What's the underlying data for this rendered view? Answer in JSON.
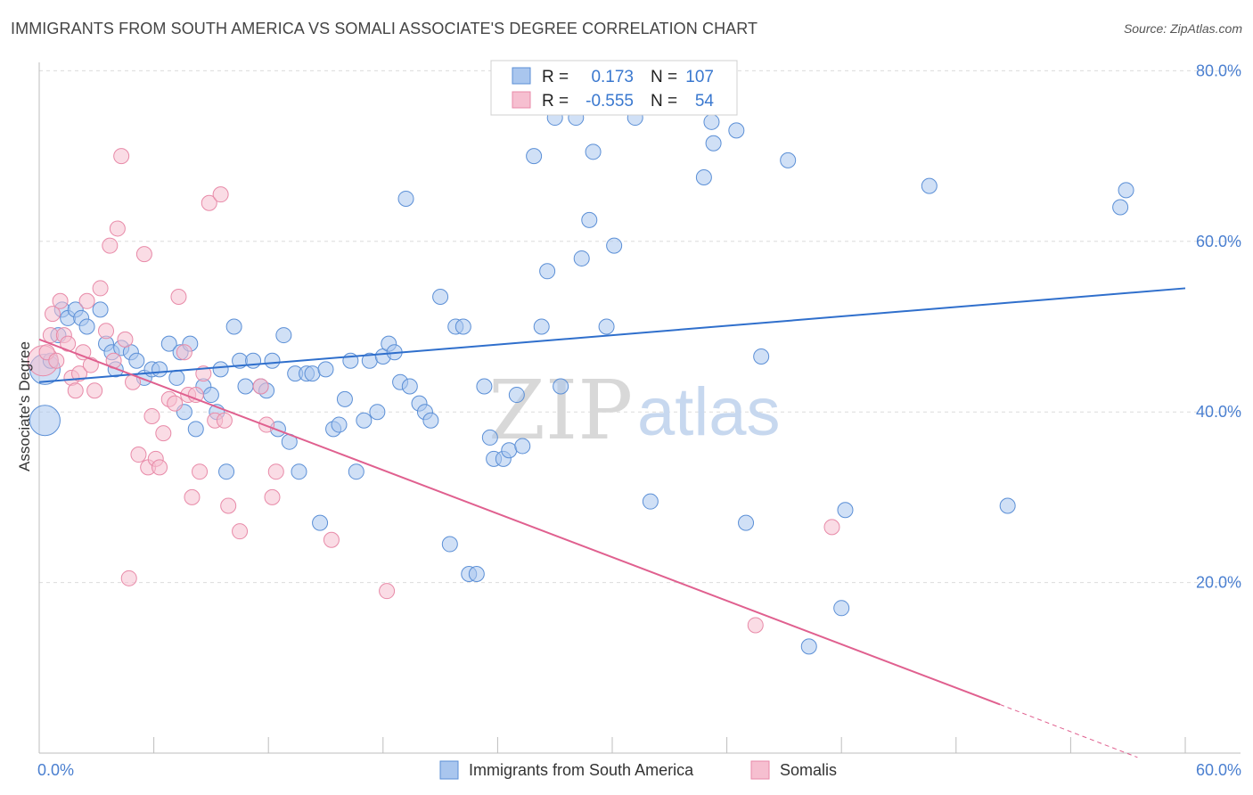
{
  "header": {
    "title": "IMMIGRANTS FROM SOUTH AMERICA VS SOMALI ASSOCIATE'S DEGREE CORRELATION CHART",
    "source": "Source: ZipAtlas.com"
  },
  "watermark": {
    "zip": "ZIP",
    "atlas": "atlas"
  },
  "colors": {
    "blue_fill": "#a9c6ee",
    "blue_stroke": "#5b8fd6",
    "blue_line": "#2f6fcc",
    "pink_fill": "#f6bfd0",
    "pink_stroke": "#e88aa8",
    "pink_line": "#e0608f",
    "grid": "#dcdcdc",
    "axis_text": "#4a7fd0"
  },
  "legend_box": {
    "rows": [
      {
        "r_label": "R =",
        "r_value": "0.173",
        "n_label": "N =",
        "n_value": "107"
      },
      {
        "r_label": "R =",
        "r_value": "-0.555",
        "n_label": "N =",
        "n_value": "54"
      }
    ]
  },
  "chart_data": {
    "type": "scatter",
    "title": "IMMIGRANTS FROM SOUTH AMERICA VS SOMALI ASSOCIATE'S DEGREE CORRELATION CHART",
    "xlabel": "",
    "ylabel": "Associate's Degree",
    "xlim": [
      0,
      60
    ],
    "ylim": [
      0,
      82
    ],
    "x_tick_labels": [
      "0.0%",
      "60.0%"
    ],
    "y_ticks": [
      20,
      40,
      60,
      80
    ],
    "y_tick_labels": [
      "20.0%",
      "40.0%",
      "60.0%",
      "80.0%"
    ],
    "grid": true,
    "series": [
      {
        "name": "Immigrants from South America",
        "color": "#a9c6ee",
        "trend": {
          "x": [
            0,
            60
          ],
          "y": [
            43.5,
            54.5
          ]
        },
        "points": [
          {
            "x": 0.3,
            "y": 39,
            "big": true
          },
          {
            "x": 0.3,
            "y": 45,
            "big": true
          },
          {
            "x": 0.6,
            "y": 46
          },
          {
            "x": 1.0,
            "y": 49
          },
          {
            "x": 1.2,
            "y": 52
          },
          {
            "x": 1.5,
            "y": 51
          },
          {
            "x": 1.9,
            "y": 52
          },
          {
            "x": 2.2,
            "y": 51
          },
          {
            "x": 2.5,
            "y": 50
          },
          {
            "x": 3.2,
            "y": 52
          },
          {
            "x": 3.5,
            "y": 48
          },
          {
            "x": 3.8,
            "y": 47
          },
          {
            "x": 4.0,
            "y": 45
          },
          {
            "x": 4.3,
            "y": 47.5
          },
          {
            "x": 4.8,
            "y": 47
          },
          {
            "x": 5.1,
            "y": 46
          },
          {
            "x": 5.5,
            "y": 44
          },
          {
            "x": 5.9,
            "y": 45
          },
          {
            "x": 6.3,
            "y": 45
          },
          {
            "x": 6.8,
            "y": 48
          },
          {
            "x": 7.2,
            "y": 44
          },
          {
            "x": 7.4,
            "y": 47
          },
          {
            "x": 7.6,
            "y": 40
          },
          {
            "x": 7.9,
            "y": 48
          },
          {
            "x": 8.2,
            "y": 38
          },
          {
            "x": 8.6,
            "y": 43
          },
          {
            "x": 9.0,
            "y": 42
          },
          {
            "x": 9.3,
            "y": 40
          },
          {
            "x": 9.5,
            "y": 45
          },
          {
            "x": 9.8,
            "y": 33
          },
          {
            "x": 10.2,
            "y": 50
          },
          {
            "x": 10.5,
            "y": 46
          },
          {
            "x": 10.8,
            "y": 43
          },
          {
            "x": 11.2,
            "y": 46
          },
          {
            "x": 11.6,
            "y": 43
          },
          {
            "x": 11.9,
            "y": 42.5
          },
          {
            "x": 12.2,
            "y": 46
          },
          {
            "x": 12.5,
            "y": 38
          },
          {
            "x": 12.8,
            "y": 49
          },
          {
            "x": 13.1,
            "y": 36.5
          },
          {
            "x": 13.4,
            "y": 44.5
          },
          {
            "x": 13.6,
            "y": 33
          },
          {
            "x": 14.0,
            "y": 44.5
          },
          {
            "x": 14.3,
            "y": 44.5
          },
          {
            "x": 14.7,
            "y": 27
          },
          {
            "x": 15.0,
            "y": 45
          },
          {
            "x": 15.4,
            "y": 38
          },
          {
            "x": 15.7,
            "y": 38.5
          },
          {
            "x": 16.0,
            "y": 41.5
          },
          {
            "x": 16.3,
            "y": 46
          },
          {
            "x": 16.6,
            "y": 33
          },
          {
            "x": 17.0,
            "y": 39
          },
          {
            "x": 17.3,
            "y": 46
          },
          {
            "x": 17.7,
            "y": 40
          },
          {
            "x": 18.0,
            "y": 46.5
          },
          {
            "x": 18.3,
            "y": 48
          },
          {
            "x": 18.6,
            "y": 47
          },
          {
            "x": 18.9,
            "y": 43.5
          },
          {
            "x": 19.2,
            "y": 65
          },
          {
            "x": 19.4,
            "y": 43
          },
          {
            "x": 19.9,
            "y": 41
          },
          {
            "x": 20.2,
            "y": 40
          },
          {
            "x": 20.5,
            "y": 39
          },
          {
            "x": 21.0,
            "y": 53.5
          },
          {
            "x": 21.5,
            "y": 24.5
          },
          {
            "x": 21.8,
            "y": 50
          },
          {
            "x": 22.2,
            "y": 50
          },
          {
            "x": 22.5,
            "y": 21
          },
          {
            "x": 22.9,
            "y": 21
          },
          {
            "x": 23.3,
            "y": 43
          },
          {
            "x": 23.6,
            "y": 37
          },
          {
            "x": 23.8,
            "y": 34.5
          },
          {
            "x": 24.3,
            "y": 34.5
          },
          {
            "x": 24.6,
            "y": 35.5
          },
          {
            "x": 25.0,
            "y": 42
          },
          {
            "x": 25.3,
            "y": 36
          },
          {
            "x": 25.9,
            "y": 70
          },
          {
            "x": 26.3,
            "y": 50
          },
          {
            "x": 26.6,
            "y": 56.5
          },
          {
            "x": 27.0,
            "y": 74.5
          },
          {
            "x": 27.3,
            "y": 43
          },
          {
            "x": 28.1,
            "y": 74.5
          },
          {
            "x": 28.4,
            "y": 58
          },
          {
            "x": 28.8,
            "y": 62.5
          },
          {
            "x": 29.0,
            "y": 70.5
          },
          {
            "x": 29.7,
            "y": 50
          },
          {
            "x": 30.1,
            "y": 59.5
          },
          {
            "x": 31.2,
            "y": 74.5
          },
          {
            "x": 32.0,
            "y": 29.5
          },
          {
            "x": 34.8,
            "y": 67.5
          },
          {
            "x": 35.2,
            "y": 74
          },
          {
            "x": 35.3,
            "y": 71.5
          },
          {
            "x": 36.5,
            "y": 73
          },
          {
            "x": 37.0,
            "y": 27
          },
          {
            "x": 37.8,
            "y": 46.5
          },
          {
            "x": 39.2,
            "y": 69.5
          },
          {
            "x": 40.3,
            "y": 12.5
          },
          {
            "x": 42.0,
            "y": 17
          },
          {
            "x": 42.2,
            "y": 28.5
          },
          {
            "x": 46.6,
            "y": 66.5
          },
          {
            "x": 50.7,
            "y": 29
          },
          {
            "x": 56.6,
            "y": 64
          },
          {
            "x": 56.9,
            "y": 66
          }
        ]
      },
      {
        "name": "Somalis",
        "color": "#f6bfd0",
        "trend": {
          "x": [
            0,
            50.3
          ],
          "y": [
            48.5,
            5.7
          ]
        },
        "trend_dash": {
          "x": [
            50.3,
            57.5
          ],
          "y": [
            5.7,
            -0.5
          ]
        },
        "points": [
          {
            "x": 0.2,
            "y": 46,
            "big": true
          },
          {
            "x": 0.4,
            "y": 47
          },
          {
            "x": 0.6,
            "y": 49
          },
          {
            "x": 0.7,
            "y": 51.5
          },
          {
            "x": 0.9,
            "y": 46
          },
          {
            "x": 1.1,
            "y": 53
          },
          {
            "x": 1.3,
            "y": 49
          },
          {
            "x": 1.5,
            "y": 48
          },
          {
            "x": 1.7,
            "y": 44
          },
          {
            "x": 1.9,
            "y": 42.5
          },
          {
            "x": 2.1,
            "y": 44.5
          },
          {
            "x": 2.3,
            "y": 47
          },
          {
            "x": 2.5,
            "y": 53
          },
          {
            "x": 2.7,
            "y": 45.5
          },
          {
            "x": 2.9,
            "y": 42.5
          },
          {
            "x": 3.2,
            "y": 54.5
          },
          {
            "x": 3.5,
            "y": 49.5
          },
          {
            "x": 3.7,
            "y": 59.5
          },
          {
            "x": 3.9,
            "y": 46
          },
          {
            "x": 4.1,
            "y": 61.5
          },
          {
            "x": 4.3,
            "y": 70
          },
          {
            "x": 4.5,
            "y": 48.5
          },
          {
            "x": 4.7,
            "y": 20.5
          },
          {
            "x": 4.9,
            "y": 43.5
          },
          {
            "x": 5.2,
            "y": 35
          },
          {
            "x": 5.5,
            "y": 58.5
          },
          {
            "x": 5.7,
            "y": 33.5
          },
          {
            "x": 5.9,
            "y": 39.5
          },
          {
            "x": 6.1,
            "y": 34.5
          },
          {
            "x": 6.3,
            "y": 33.5
          },
          {
            "x": 6.5,
            "y": 37.5
          },
          {
            "x": 6.8,
            "y": 41.5
          },
          {
            "x": 7.1,
            "y": 41
          },
          {
            "x": 7.3,
            "y": 53.5
          },
          {
            "x": 7.6,
            "y": 47
          },
          {
            "x": 7.8,
            "y": 42
          },
          {
            "x": 8.0,
            "y": 30
          },
          {
            "x": 8.2,
            "y": 42
          },
          {
            "x": 8.4,
            "y": 33
          },
          {
            "x": 8.6,
            "y": 44.5
          },
          {
            "x": 8.9,
            "y": 64.5
          },
          {
            "x": 9.2,
            "y": 39
          },
          {
            "x": 9.5,
            "y": 65.5
          },
          {
            "x": 9.7,
            "y": 39
          },
          {
            "x": 9.9,
            "y": 29
          },
          {
            "x": 10.5,
            "y": 26
          },
          {
            "x": 11.6,
            "y": 43
          },
          {
            "x": 11.9,
            "y": 38.5
          },
          {
            "x": 12.2,
            "y": 30
          },
          {
            "x": 12.4,
            "y": 33
          },
          {
            "x": 15.3,
            "y": 25
          },
          {
            "x": 18.2,
            "y": 19
          },
          {
            "x": 37.5,
            "y": 15
          },
          {
            "x": 41.5,
            "y": 26.5
          }
        ]
      }
    ],
    "legend": [
      "Immigrants from South America",
      "Somalis"
    ]
  }
}
